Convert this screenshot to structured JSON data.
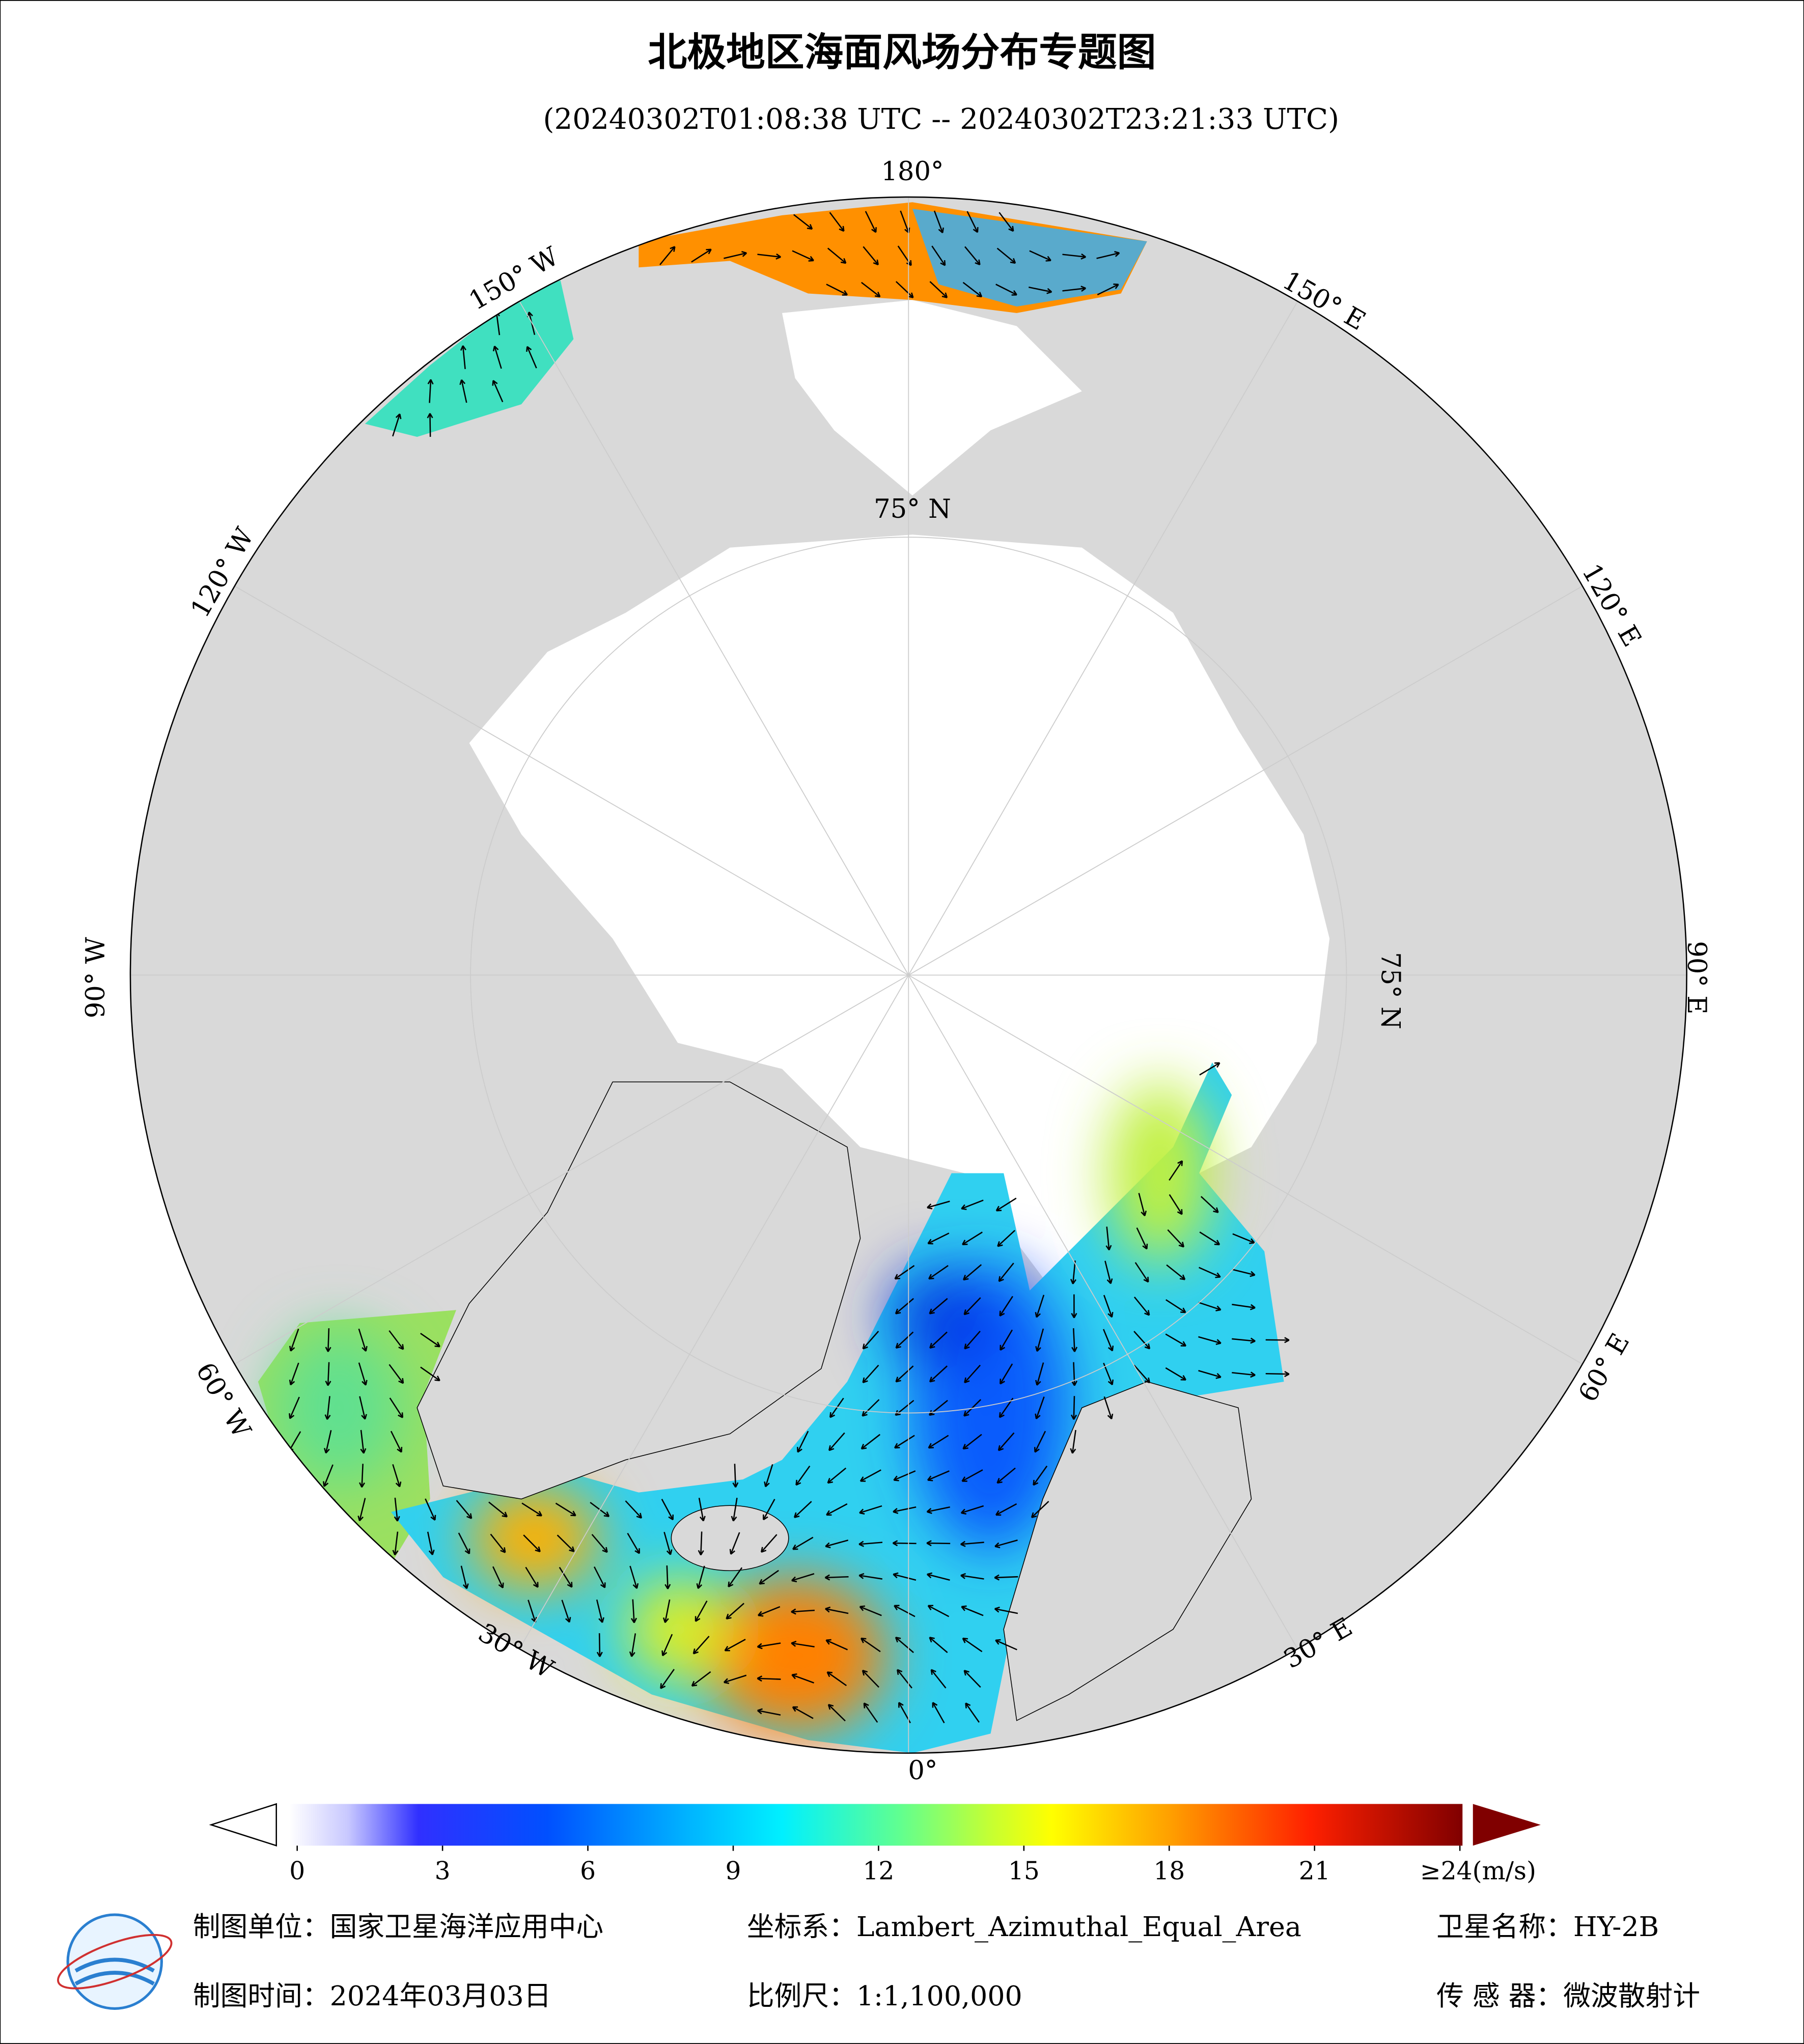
{
  "header": {
    "title": "北极地区海面风场分布专题图",
    "subtitle": "(20240302T01:08:38 UTC -- 20240302T23:21:33 UTC)"
  },
  "map": {
    "longitude_labels": [
      "180°",
      "150° W",
      "120° W",
      "90° W",
      "60° W",
      "30° W",
      "0°",
      "30° E",
      "60° E",
      "90° E",
      "120° E",
      "150° E"
    ],
    "latitude_labels": [
      "75° N",
      "75° N"
    ]
  },
  "colorbar": {
    "lim": [
      0,
      24
    ],
    "ticks": [
      0,
      3,
      6,
      9,
      12,
      15,
      18,
      21,
      {
        "value": 24,
        "label": "≥24(m/s)"
      }
    ]
  },
  "footer": {
    "items": [
      "制图单位：国家卫星海洋应用中心",
      "坐标系：Lambert_Azimuthal_Equal_Area",
      "卫星名称：HY-2B",
      "制图时间：2024年03月03日",
      "比例尺：1:1,100,000",
      "传 感 器：微波散射计"
    ]
  }
}
